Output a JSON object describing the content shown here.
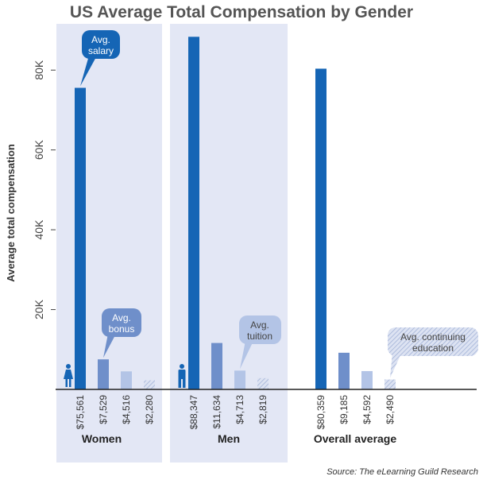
{
  "chart_data": {
    "type": "bar",
    "title": "US Average Total Compensation by Gender",
    "ylabel": "Average total compensation",
    "ylim": [
      0,
      90000
    ],
    "yticks": [
      {
        "value": 20000,
        "label": "20K"
      },
      {
        "value": 40000,
        "label": "40K"
      },
      {
        "value": 60000,
        "label": "60K"
      },
      {
        "value": 80000,
        "label": "80K"
      }
    ],
    "categories": [
      "Women",
      "Men",
      "Overall average"
    ],
    "series": [
      {
        "name": "Avg. salary",
        "color": "#1565b5",
        "values": [
          75561,
          88347,
          80359
        ],
        "labels": [
          "$75,561",
          "$88,347",
          "$80,359"
        ]
      },
      {
        "name": "Avg. bonus",
        "color": "#6f8fca",
        "values": [
          7529,
          11634,
          9185
        ],
        "labels": [
          "$7,529",
          "$11,634",
          "$9,185"
        ]
      },
      {
        "name": "Avg. tuition",
        "color": "#b3c4e6",
        "values": [
          4516,
          4713,
          4592
        ],
        "labels": [
          "$4,516",
          "$4,713",
          "$4,592"
        ]
      },
      {
        "name": "Avg. continuing education",
        "color": "#c9d1e8",
        "pattern": "hatched",
        "values": [
          2280,
          2819,
          2490
        ],
        "labels": [
          "$2,280",
          "$2,819",
          "$2,490"
        ]
      }
    ],
    "callouts": [
      {
        "series": 0,
        "lines": [
          "Avg.",
          "salary"
        ]
      },
      {
        "series": 1,
        "lines": [
          "Avg.",
          "bonus"
        ]
      },
      {
        "series": 2,
        "lines": [
          "Avg.",
          "tuition"
        ]
      },
      {
        "series": 3,
        "lines": [
          "Avg. continuing",
          "education"
        ]
      }
    ],
    "group_icons": [
      "woman-icon",
      "man-icon"
    ],
    "highlight_color": "#e3e7f5",
    "grid": false,
    "source": "Source: The eLearning Guild Research"
  }
}
